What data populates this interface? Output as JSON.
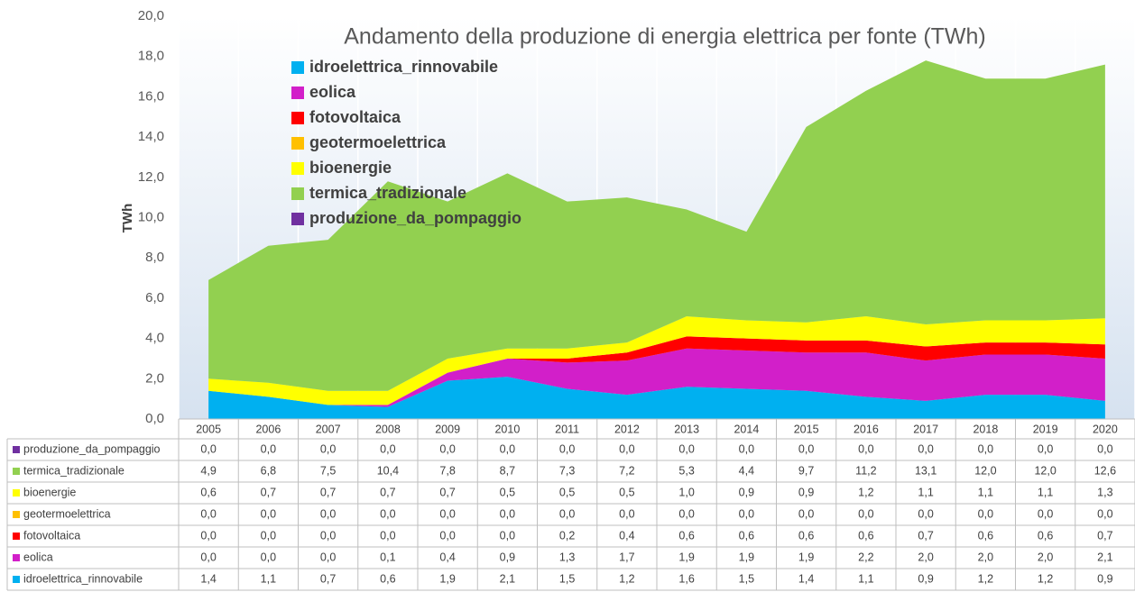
{
  "chart_data": {
    "type": "stacked_area",
    "title": "Andamento della produzione di energia elettrica per fonte (TWh)",
    "y_label": "TWh",
    "categories": [
      "2005",
      "2006",
      "2007",
      "2008",
      "2009",
      "2010",
      "2011",
      "2012",
      "2013",
      "2014",
      "2015",
      "2016",
      "2017",
      "2018",
      "2019",
      "2020"
    ],
    "ylim": [
      0,
      20
    ],
    "yticks": [
      {
        "value": 0,
        "label": "0,0"
      },
      {
        "value": 2,
        "label": "2,0"
      },
      {
        "value": 4,
        "label": "4,0"
      },
      {
        "value": 6,
        "label": "6,0"
      },
      {
        "value": 8,
        "label": "8,0"
      },
      {
        "value": 10,
        "label": "10,0"
      },
      {
        "value": 12,
        "label": "12,0"
      },
      {
        "value": 14,
        "label": "14,0"
      },
      {
        "value": 16,
        "label": "16,0"
      },
      {
        "value": 18,
        "label": "18,0"
      },
      {
        "value": 20,
        "label": "20,0"
      }
    ],
    "legend": "top-left",
    "series": [
      {
        "name": "idroelettrica_rinnovabile",
        "color": "#00b0f0",
        "values": [
          1.4,
          1.1,
          0.7,
          0.6,
          1.9,
          2.1,
          1.5,
          1.2,
          1.6,
          1.5,
          1.4,
          1.1,
          0.9,
          1.2,
          1.2,
          0.9
        ],
        "value_labels": [
          "1,4",
          "1,1",
          "0,7",
          "0,6",
          "1,9",
          "2,1",
          "1,5",
          "1,2",
          "1,6",
          "1,5",
          "1,4",
          "1,1",
          "0,9",
          "1,2",
          "1,2",
          "0,9"
        ]
      },
      {
        "name": "eolica",
        "color": "#d21fc9",
        "values": [
          0,
          0,
          0,
          0.1,
          0.4,
          0.9,
          1.3,
          1.7,
          1.9,
          1.9,
          1.9,
          2.2,
          2.0,
          2.0,
          2.0,
          2.1
        ],
        "value_labels": [
          "0,0",
          "0,0",
          "0,0",
          "0,1",
          "0,4",
          "0,9",
          "1,3",
          "1,7",
          "1,9",
          "1,9",
          "1,9",
          "2,2",
          "2,0",
          "2,0",
          "2,0",
          "2,1"
        ]
      },
      {
        "name": "fotovoltaica",
        "color": "#ff0000",
        "values": [
          0,
          0,
          0,
          0,
          0,
          0,
          0.2,
          0.4,
          0.6,
          0.6,
          0.6,
          0.6,
          0.7,
          0.6,
          0.6,
          0.7
        ],
        "value_labels": [
          "0,0",
          "0,0",
          "0,0",
          "0,0",
          "0,0",
          "0,0",
          "0,2",
          "0,4",
          "0,6",
          "0,6",
          "0,6",
          "0,6",
          "0,7",
          "0,6",
          "0,6",
          "0,7"
        ]
      },
      {
        "name": "geotermoelettrica",
        "color": "#ffc000",
        "values": [
          0,
          0,
          0,
          0,
          0,
          0,
          0,
          0,
          0,
          0,
          0,
          0,
          0,
          0,
          0,
          0
        ],
        "value_labels": [
          "0,0",
          "0,0",
          "0,0",
          "0,0",
          "0,0",
          "0,0",
          "0,0",
          "0,0",
          "0,0",
          "0,0",
          "0,0",
          "0,0",
          "0,0",
          "0,0",
          "0,0",
          "0,0"
        ]
      },
      {
        "name": "bioenergie",
        "color": "#ffff00",
        "values": [
          0.6,
          0.7,
          0.7,
          0.7,
          0.7,
          0.5,
          0.5,
          0.5,
          1.0,
          0.9,
          0.9,
          1.2,
          1.1,
          1.1,
          1.1,
          1.3
        ],
        "value_labels": [
          "0,6",
          "0,7",
          "0,7",
          "0,7",
          "0,7",
          "0,5",
          "0,5",
          "0,5",
          "1,0",
          "0,9",
          "0,9",
          "1,2",
          "1,1",
          "1,1",
          "1,1",
          "1,3"
        ]
      },
      {
        "name": "termica_tradizionale",
        "color": "#92d050",
        "values": [
          4.9,
          6.8,
          7.5,
          10.4,
          7.8,
          8.7,
          7.3,
          7.2,
          5.3,
          4.4,
          9.7,
          11.2,
          13.1,
          12.0,
          12.0,
          12.6
        ],
        "value_labels": [
          "4,9",
          "6,8",
          "7,5",
          "10,4",
          "7,8",
          "8,7",
          "7,3",
          "7,2",
          "5,3",
          "4,4",
          "9,7",
          "11,2",
          "13,1",
          "12,0",
          "12,0",
          "12,6"
        ]
      },
      {
        "name": "produzione_da_pompaggio",
        "color": "#7030a0",
        "values": [
          0,
          0,
          0,
          0,
          0,
          0,
          0,
          0,
          0,
          0,
          0,
          0,
          0,
          0,
          0,
          0
        ],
        "value_labels": [
          "0,0",
          "0,0",
          "0,0",
          "0,0",
          "0,0",
          "0,0",
          "0,0",
          "0,0",
          "0,0",
          "0,0",
          "0,0",
          "0,0",
          "0,0",
          "0,0",
          "0,0",
          "0,0"
        ]
      }
    ]
  }
}
